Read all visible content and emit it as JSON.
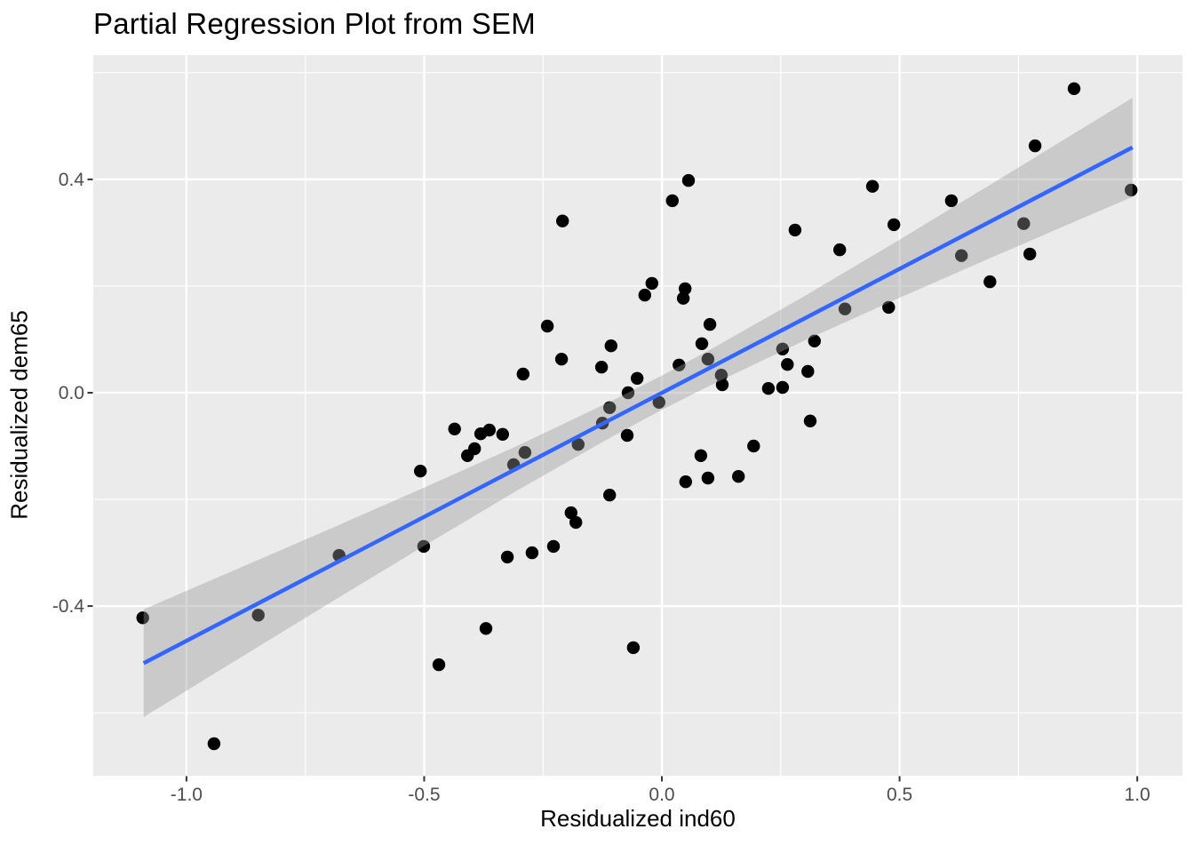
{
  "figure": {
    "title": "Partial Regression Plot from SEM"
  },
  "chart_data": {
    "type": "scatter",
    "title": "Partial Regression Plot from SEM",
    "xlabel": "Residualized ind60",
    "ylabel": "Residualized dem65",
    "xlim": [
      -1.196,
      1.095
    ],
    "ylim": [
      -0.718,
      0.633
    ],
    "grid": true,
    "legend": false,
    "x_ticks": {
      "values": [
        -1.0,
        -0.5,
        0.0,
        0.5,
        1.0
      ],
      "labels": [
        "-1.0",
        "-0.5",
        "0.0",
        "0.5",
        "1.0"
      ]
    },
    "x_minor_ticks": [
      -0.75,
      -0.25,
      0.25,
      0.75
    ],
    "y_ticks": {
      "values": [
        0.4,
        0.0,
        -0.4
      ],
      "labels": [
        "0.4",
        "0.0",
        "-0.4"
      ]
    },
    "y_minor_ticks": [
      0.6,
      0.2,
      -0.2,
      -0.6
    ],
    "points": [
      [
        -1.092,
        -0.422
      ],
      [
        -0.942,
        -0.658
      ],
      [
        -0.849,
        -0.417
      ],
      [
        -0.679,
        -0.305
      ],
      [
        -0.501,
        -0.288
      ],
      [
        -0.508,
        -0.147
      ],
      [
        -0.469,
        -0.51
      ],
      [
        -0.436,
        -0.068
      ],
      [
        -0.381,
        -0.077
      ],
      [
        -0.363,
        -0.07
      ],
      [
        -0.335,
        -0.078
      ],
      [
        -0.409,
        -0.118
      ],
      [
        -0.394,
        -0.105
      ],
      [
        -0.288,
        -0.112
      ],
      [
        -0.312,
        -0.135
      ],
      [
        -0.176,
        -0.097
      ],
      [
        -0.125,
        -0.057
      ],
      [
        -0.073,
        -0.08
      ],
      [
        0.312,
        -0.053
      ],
      [
        0.082,
        -0.118
      ],
      [
        0.193,
        -0.1
      ],
      [
        0.05,
        -0.167
      ],
      [
        0.097,
        -0.16
      ],
      [
        0.161,
        -0.157
      ],
      [
        -0.11,
        -0.192
      ],
      [
        -0.191,
        -0.225
      ],
      [
        -0.181,
        -0.243
      ],
      [
        -0.228,
        -0.288
      ],
      [
        -0.273,
        -0.3
      ],
      [
        -0.325,
        -0.308
      ],
      [
        -0.37,
        -0.442
      ],
      [
        -0.06,
        -0.478
      ],
      [
        0.056,
        0.398
      ],
      [
        0.022,
        0.36
      ],
      [
        -0.209,
        0.322
      ],
      [
        0.28,
        0.305
      ],
      [
        -0.021,
        0.205
      ],
      [
        -0.036,
        0.183
      ],
      [
        0.049,
        0.195
      ],
      [
        0.045,
        0.177
      ],
      [
        -0.241,
        0.125
      ],
      [
        0.101,
        0.128
      ],
      [
        -0.107,
        0.088
      ],
      [
        0.084,
        0.092
      ],
      [
        -0.211,
        0.063
      ],
      [
        0.097,
        0.063
      ],
      [
        -0.292,
        0.035
      ],
      [
        -0.127,
        0.048
      ],
      [
        0.036,
        0.052
      ],
      [
        0.254,
        0.082
      ],
      [
        0.264,
        0.053
      ],
      [
        0.321,
        0.097
      ],
      [
        0.307,
        0.04
      ],
      [
        -0.052,
        0.027
      ],
      [
        0.125,
        0.033
      ],
      [
        0.127,
        0.015
      ],
      [
        -0.071,
        0.0
      ],
      [
        -0.11,
        -0.028
      ],
      [
        -0.006,
        -0.018
      ],
      [
        0.224,
        0.008
      ],
      [
        0.254,
        0.01
      ],
      [
        0.867,
        0.57
      ],
      [
        0.785,
        0.463
      ],
      [
        0.443,
        0.387
      ],
      [
        0.609,
        0.36
      ],
      [
        0.987,
        0.38
      ],
      [
        0.488,
        0.315
      ],
      [
        0.761,
        0.317
      ],
      [
        0.374,
        0.268
      ],
      [
        0.63,
        0.257
      ],
      [
        0.774,
        0.26
      ],
      [
        0.69,
        0.208
      ],
      [
        0.385,
        0.157
      ],
      [
        0.477,
        0.16
      ]
    ],
    "regression_line": {
      "x1": -1.09,
      "y1": -0.507,
      "x2": 0.99,
      "y2": 0.46
    },
    "ci_band": {
      "x": [
        -1.09,
        -0.9,
        -0.7,
        -0.5,
        -0.3,
        -0.1,
        0.0,
        0.1,
        0.3,
        0.5,
        0.7,
        0.9,
        0.99
      ],
      "upper": [
        -0.406,
        -0.333,
        -0.256,
        -0.178,
        -0.098,
        -0.013,
        0.032,
        0.08,
        0.181,
        0.287,
        0.395,
        0.504,
        0.553
      ],
      "lower": [
        -0.608,
        -0.504,
        -0.395,
        -0.287,
        -0.181,
        -0.08,
        -0.032,
        0.013,
        0.098,
        0.178,
        0.256,
        0.333,
        0.367
      ]
    },
    "colors": {
      "background": "#FFFFFF",
      "panel": "#EBEBEB",
      "grid": "#FFFFFF",
      "point": "#000000",
      "smooth_line": "#3366FF",
      "ci_fill": "#999999",
      "ci_opacity": 0.4,
      "tick_label": "#4D4D4D",
      "tick_mark": "#333333",
      "title": "#000000",
      "axis_title": "#000000"
    }
  }
}
